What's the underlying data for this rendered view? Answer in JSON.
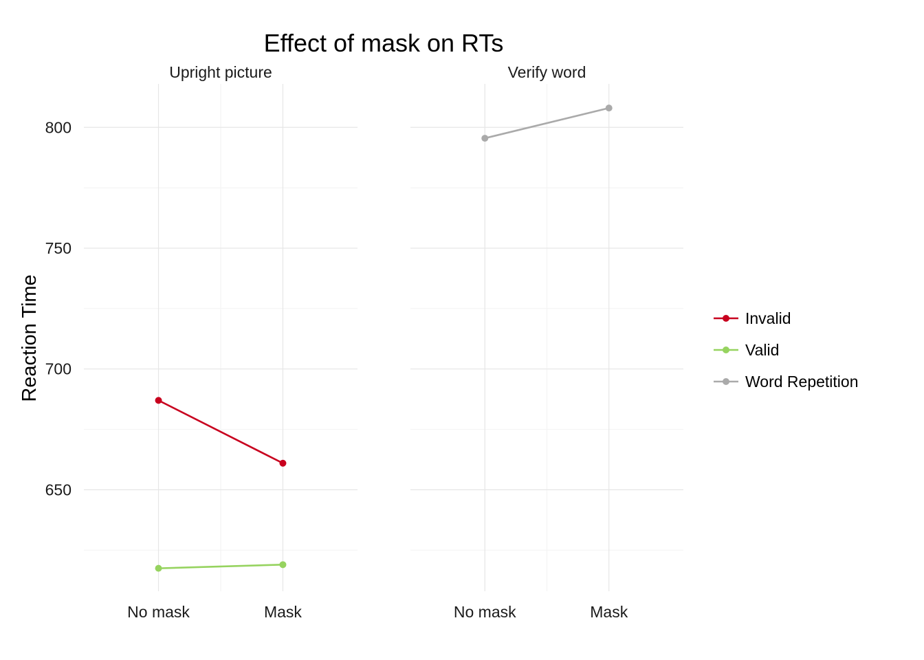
{
  "chart_data": {
    "type": "line",
    "title": "Effect of mask on RTs",
    "xlabel": "",
    "ylabel": "Reaction Time",
    "categories": [
      "No mask",
      "Mask"
    ],
    "ylim": [
      608,
      818
    ],
    "yticks": [
      650,
      700,
      750,
      800
    ],
    "grid": true,
    "legend_position": "right",
    "legend": [
      {
        "name": "Invalid",
        "color": "#c8001e"
      },
      {
        "name": "Valid",
        "color": "#96d35f"
      },
      {
        "name": "Word Repetition",
        "color": "#aaaaaa"
      }
    ],
    "panels": [
      {
        "title": "Upright picture",
        "series": [
          {
            "name": "Invalid",
            "color": "#c8001e",
            "values": [
              687,
              661
            ]
          },
          {
            "name": "Valid",
            "color": "#96d35f",
            "values": [
              617.5,
              619
            ]
          }
        ]
      },
      {
        "title": "Verify word",
        "series": [
          {
            "name": "Word Repetition",
            "color": "#aaaaaa",
            "values": [
              795.5,
              808
            ]
          }
        ]
      }
    ]
  }
}
